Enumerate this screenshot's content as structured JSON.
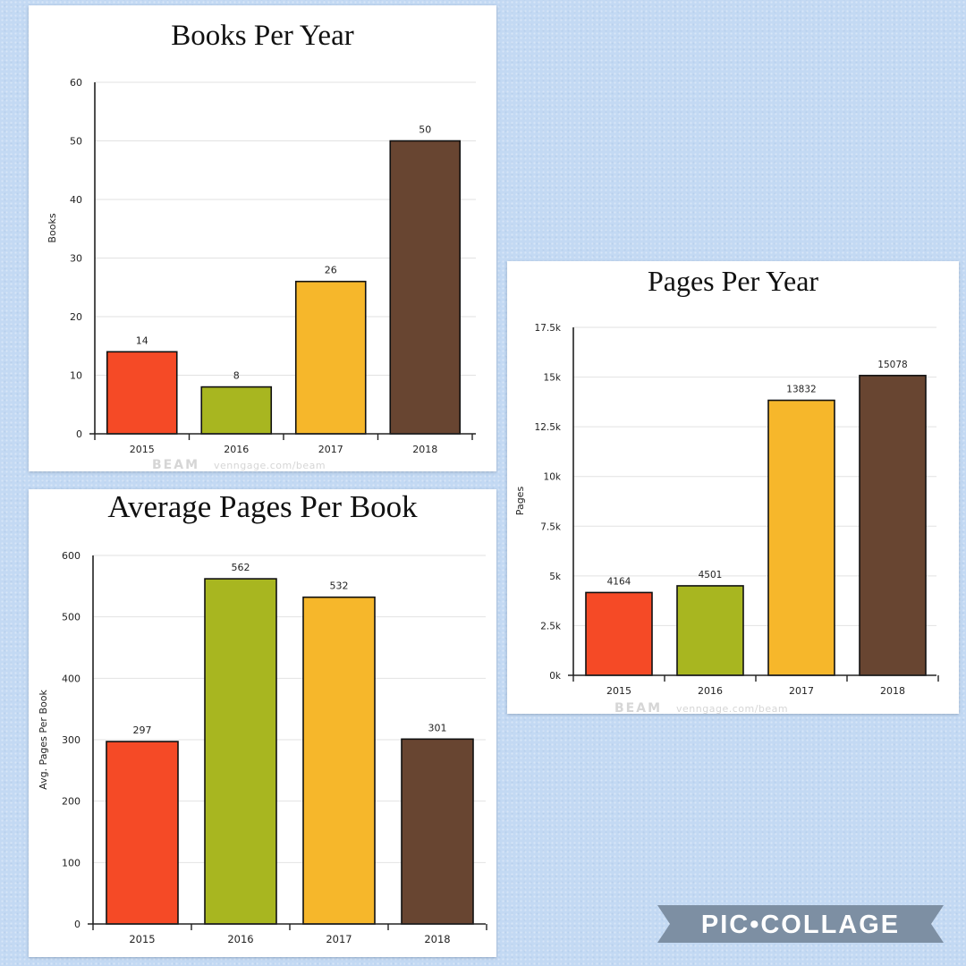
{
  "colors": {
    "series": [
      "#f54a26",
      "#a8b620",
      "#f6b72b",
      "#684531"
    ],
    "grid": "#e2e2e2",
    "axis": "#222222",
    "text": "#222222"
  },
  "watermark": {
    "brand": "BEAM",
    "url": "venngage.com/beam"
  },
  "logo": {
    "text": "PIC•COLLAGE"
  },
  "chart_data": [
    {
      "type": "bar",
      "title": "Books Per Year",
      "ylabel": "Books",
      "categories": [
        "2015",
        "2016",
        "2017",
        "2018"
      ],
      "values": [
        14,
        8,
        26,
        50
      ],
      "labels": [
        "14",
        "8",
        "26",
        "50"
      ],
      "ylim": [
        0,
        60
      ],
      "yticks": [
        0,
        10,
        20,
        30,
        40,
        50,
        60
      ],
      "ytick_labels": [
        "0",
        "10",
        "20",
        "30",
        "40",
        "50",
        "60"
      ],
      "grid": true
    },
    {
      "type": "bar",
      "title": "Pages Per Year",
      "ylabel": "Pages",
      "categories": [
        "2015",
        "2016",
        "2017",
        "2018"
      ],
      "values": [
        4164,
        4501,
        13832,
        15078
      ],
      "labels": [
        "4164",
        "4501",
        "13832",
        "15078"
      ],
      "ylim": [
        0,
        17500
      ],
      "yticks": [
        0,
        2500,
        5000,
        7500,
        10000,
        12500,
        15000,
        17500
      ],
      "ytick_labels": [
        "0k",
        "2.5k",
        "5k",
        "7.5k",
        "10k",
        "12.5k",
        "15k",
        "17.5k"
      ],
      "grid": true
    },
    {
      "type": "bar",
      "title": "Average Pages Per Book",
      "ylabel": "Avg. Pages Per Book",
      "categories": [
        "2015",
        "2016",
        "2017",
        "2018"
      ],
      "values": [
        297,
        562,
        532,
        301
      ],
      "labels": [
        "297",
        "562",
        "532",
        "301"
      ],
      "ylim": [
        0,
        600
      ],
      "yticks": [
        0,
        100,
        200,
        300,
        400,
        500,
        600
      ],
      "ytick_labels": [
        "0",
        "100",
        "200",
        "300",
        "400",
        "500",
        "600"
      ],
      "grid": true
    }
  ]
}
